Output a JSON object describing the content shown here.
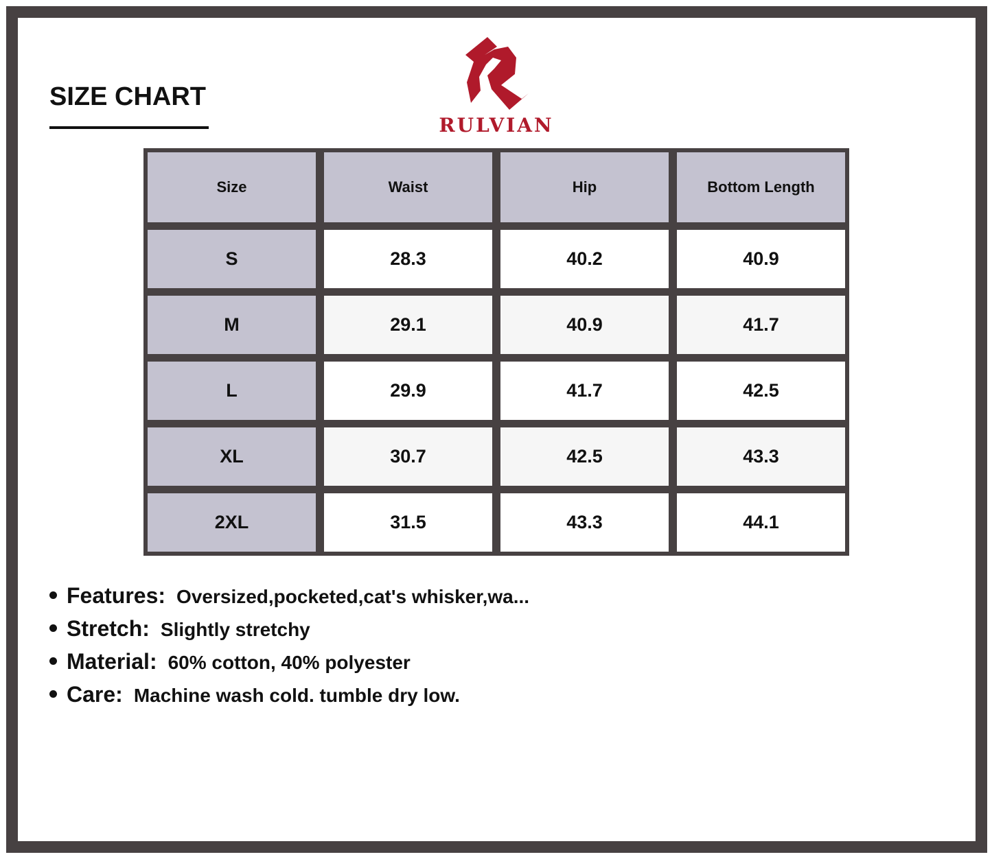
{
  "title": "SIZE CHART",
  "brand": {
    "name": "RULVIAN",
    "color": "#b01a2b"
  },
  "table": {
    "headers": [
      "Size",
      "Waist",
      "Hip",
      "Bottom Length"
    ],
    "rows": [
      [
        "S",
        "28.3",
        "40.2",
        "40.9"
      ],
      [
        "M",
        "29.1",
        "40.9",
        "41.7"
      ],
      [
        "L",
        "29.9",
        "41.7",
        "42.5"
      ],
      [
        "XL",
        "30.7",
        "42.5",
        "43.3"
      ],
      [
        "2XL",
        "31.5",
        "43.3",
        "44.1"
      ]
    ]
  },
  "notes": [
    {
      "label": "Features:",
      "value": "Oversized,pocketed,cat's whisker,wa..."
    },
    {
      "label": "Stretch:",
      "value": "Slightly stretchy"
    },
    {
      "label": "Material:",
      "value": "60% cotton, 40% polyester"
    },
    {
      "label": "Care:",
      "value": "Machine wash cold. tumble dry low."
    }
  ]
}
